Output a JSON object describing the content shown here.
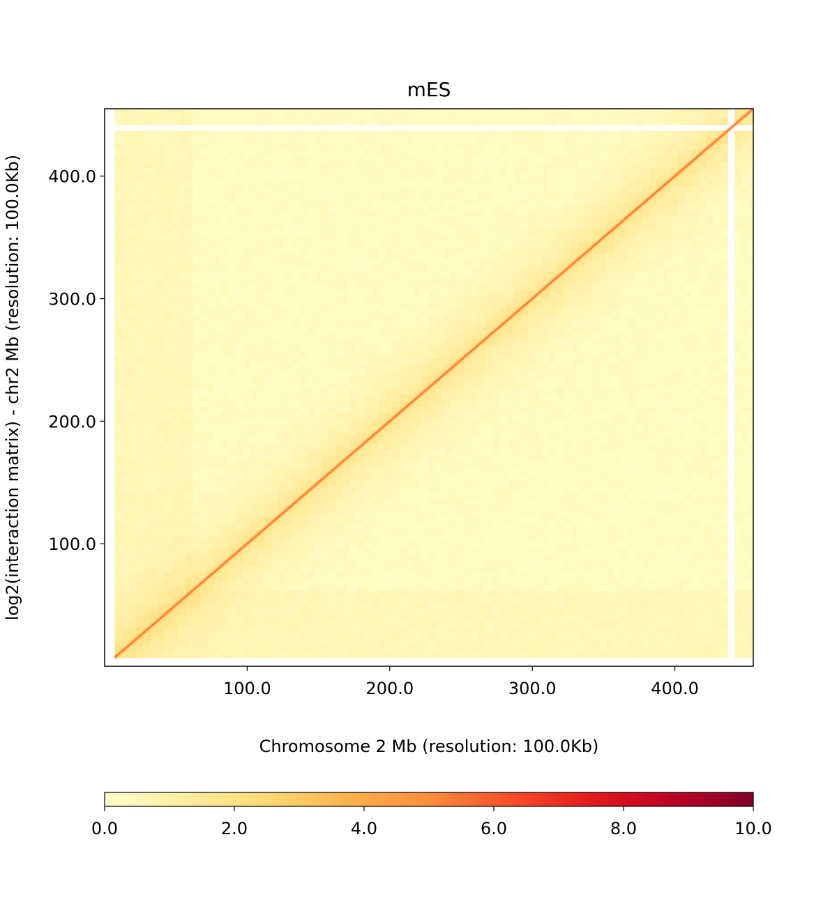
{
  "chart_data": {
    "type": "heatmap",
    "title": "mES",
    "xlabel": "Chromosome 2 Mb (resolution: 100.0Kb)",
    "ylabel": "log2(interaction matrix) - chr2 Mb (resolution: 100.0Kb)",
    "xlim": [
      0,
      455
    ],
    "ylim": [
      0,
      455
    ],
    "x_ticks": [
      100,
      200,
      300,
      400
    ],
    "y_ticks": [
      100,
      200,
      300,
      400
    ],
    "x_tick_labels": [
      "100.0",
      "200.0",
      "300.0",
      "400.0"
    ],
    "y_tick_labels": [
      "100.0",
      "200.0",
      "300.0",
      "400.0"
    ],
    "matrix": {
      "start": 7,
      "end": 454,
      "diagonal_value": 5.2,
      "near_diagonal_decay_mb": 6,
      "background_value": 0.3,
      "gaps": [
        [
          437,
          444
        ]
      ]
    },
    "colorbar": {
      "colormap": "YlOrRd",
      "colors": [
        "#ffffcc",
        "#ffeda0",
        "#fed976",
        "#feb24c",
        "#fd8d3c",
        "#fc4e2a",
        "#e31a1c",
        "#bd0026",
        "#800026"
      ],
      "range": [
        0,
        10
      ],
      "ticks": [
        0,
        2,
        4,
        6,
        8,
        10
      ],
      "tick_labels": [
        "0.0",
        "2.0",
        "4.0",
        "6.0",
        "8.0",
        "10.0"
      ],
      "orientation": "horizontal"
    },
    "grid": false
  }
}
